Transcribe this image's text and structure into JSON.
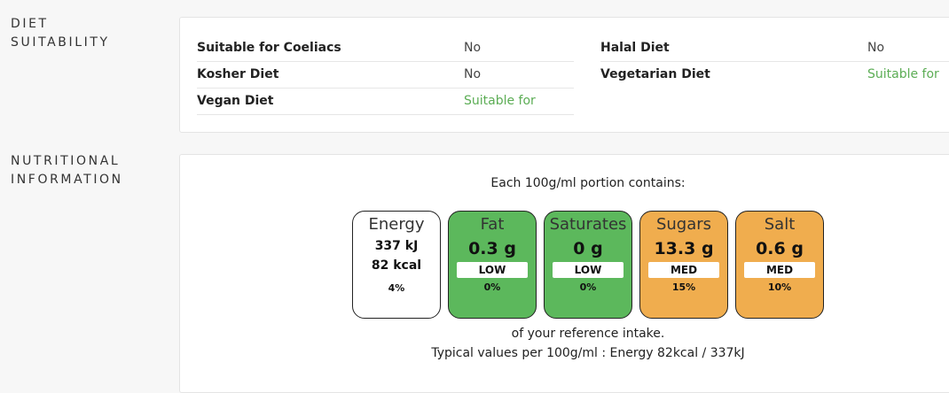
{
  "diet": {
    "heading": [
      "DIET",
      "SUITABILITY"
    ],
    "left": [
      {
        "label": "Suitable for Coeliacs",
        "value": "No"
      },
      {
        "label": "Kosher Diet",
        "value": "No"
      },
      {
        "label": "Vegan Diet",
        "value": "Suitable for"
      }
    ],
    "right": [
      {
        "label": "Halal Diet",
        "value": "No"
      },
      {
        "label": "Vegetarian Diet",
        "value": "Suitable for"
      }
    ],
    "colors": {
      "suitable": "#5cad55"
    }
  },
  "nutrition": {
    "heading": [
      "NUTRITIONAL",
      "INFORMATION"
    ],
    "portion_text": "Each 100g/ml portion contains:",
    "energy": {
      "name": "Energy",
      "kj": "337 kJ",
      "kcal": "82 kcal",
      "percent": "4%"
    },
    "tiles": [
      {
        "name": "Fat",
        "amount": "0.3 g",
        "level": "LOW",
        "percent": "0%",
        "color": "#5cb85c"
      },
      {
        "name": "Saturates",
        "amount": "0 g",
        "level": "LOW",
        "percent": "0%",
        "color": "#5cb85c"
      },
      {
        "name": "Sugars",
        "amount": "13.3 g",
        "level": "MED",
        "percent": "15%",
        "color": "#f0ad4e"
      },
      {
        "name": "Salt",
        "amount": "0.6 g",
        "level": "MED",
        "percent": "10%",
        "color": "#f0ad4e"
      }
    ],
    "reference_text": "of your reference intake.",
    "typical_text": "Typical values per 100g/ml : Energy 82kcal / 337kJ"
  }
}
